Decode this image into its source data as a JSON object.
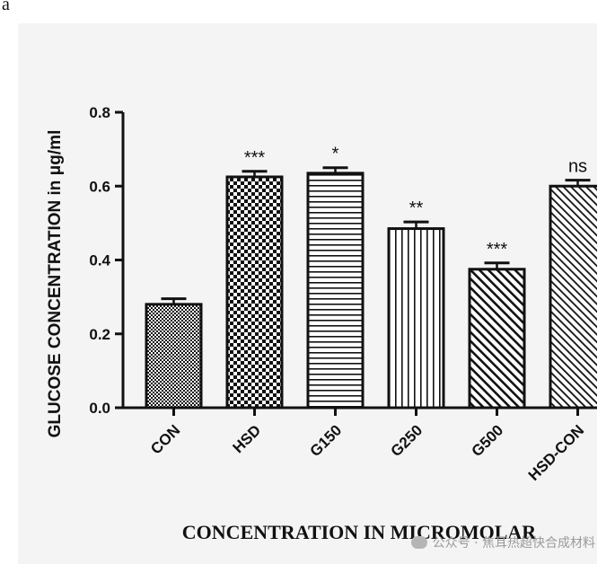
{
  "panel_label": "a",
  "watermark": "公众号 · 焦耳热超快合成材料",
  "chart_data": {
    "type": "bar",
    "title": "",
    "xlabel": "CONCENTRATION IN MICROMOLAR",
    "ylabel": "GLUCOSE CONCENTRATION in μg/ml",
    "ylim": [
      0.0,
      0.8
    ],
    "yticks": [
      "0.0",
      "0.2",
      "0.4",
      "0.6",
      "0.8"
    ],
    "categories": [
      "CON",
      "HSD",
      "G150",
      "G250",
      "G500",
      "HSD-CON"
    ],
    "values": [
      0.28,
      0.625,
      0.635,
      0.485,
      0.375,
      0.6
    ],
    "errors": [
      0.015,
      0.015,
      0.015,
      0.018,
      0.017,
      0.016
    ],
    "significance": [
      "",
      "***",
      "*",
      "**",
      "***",
      "ns"
    ],
    "patterns": [
      "fine-checker",
      "checker",
      "horizontal-lines",
      "vertical-lines",
      "diagonal-lines",
      "diagonal-lines-dense"
    ]
  }
}
